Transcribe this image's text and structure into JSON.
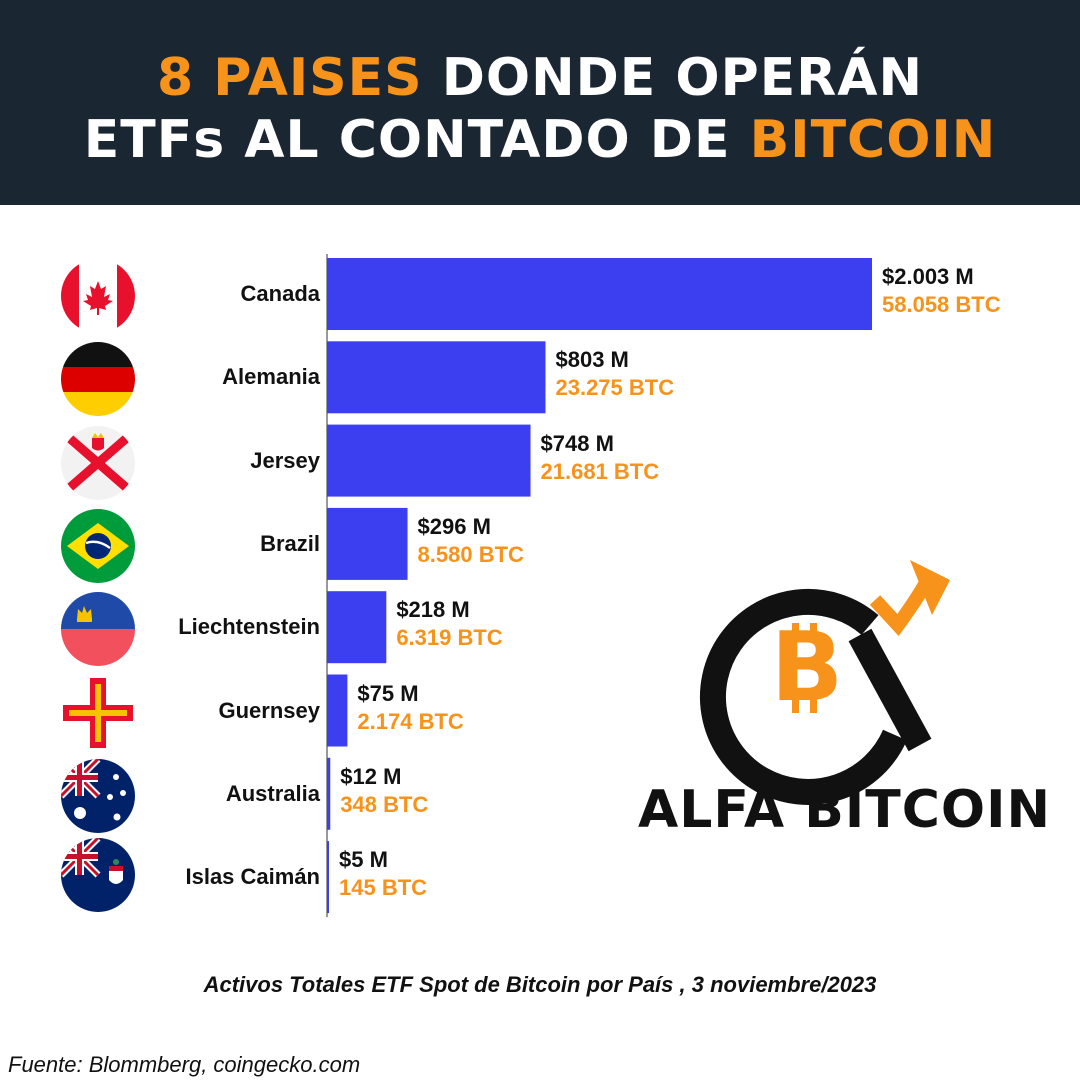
{
  "header": {
    "line1_highlight": "8 PAISES",
    "line1_rest": " DONDE OPERÁN",
    "line2_rest": "ETFs AL CONTADO DE ",
    "line2_highlight": "BITCOIN"
  },
  "chart_data": {
    "type": "bar",
    "orientation": "horizontal",
    "categories": [
      "Canada",
      "Alemania",
      "Jersey",
      "Brazil",
      "Liechtenstein",
      "Guernsey",
      "Australia",
      "Islas Caimán"
    ],
    "values": [
      2003,
      803,
      748,
      296,
      218,
      75,
      12,
      5
    ],
    "usd_labels": [
      "$2.003 M",
      "$803 M",
      "$748 M",
      "$296 M",
      "$218 M",
      "$75 M",
      "$12 M",
      "$5 M"
    ],
    "btc_labels": [
      "58.058 BTC",
      "23.275 BTC",
      "21.681 BTC",
      "8.580 BTC",
      "6.319 BTC",
      "2.174 BTC",
      "348 BTC",
      "145 BTC"
    ],
    "bar_color": "#3b3fef",
    "btc_color": "#f7931a",
    "caption": "Activos Totales ETF Spot de Bitcoin por País , 3 noviembre/2023"
  },
  "flags": [
    "canada-flag-icon",
    "germany-flag-icon",
    "jersey-flag-icon",
    "brazil-flag-icon",
    "liechtenstein-flag-icon",
    "guernsey-flag-icon",
    "australia-flag-icon",
    "cayman-islands-flag-icon"
  ],
  "logo": {
    "text": "ALFA BITCOIN",
    "icon": "alfa-bitcoin-logo-icon"
  },
  "source": "Fuente: Blommberg, coingecko.com",
  "colors": {
    "header_bg": "#1b2633",
    "accent": "#f7931a",
    "bar": "#3b3fef"
  }
}
